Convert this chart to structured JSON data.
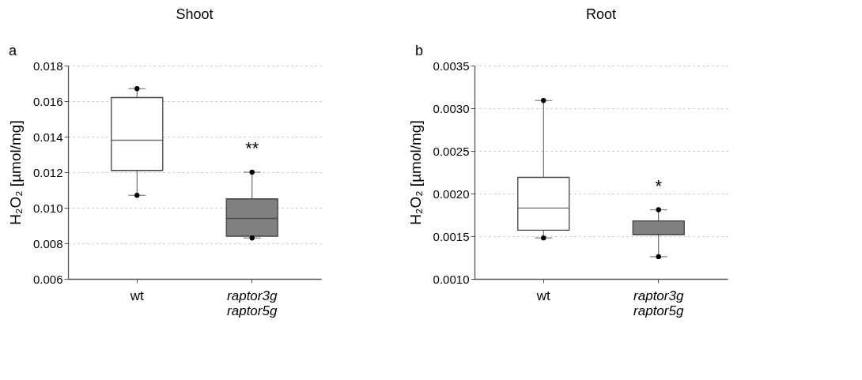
{
  "chart_data": [
    {
      "type": "box",
      "title": "Shoot",
      "ylabel": "H₂O₂ [µmol/mg]",
      "categories": [
        "wt",
        "raptor3g raptor5g"
      ],
      "colors": [
        "#ffffff",
        "#808080"
      ],
      "boxes": [
        {
          "low": 0.0107,
          "q1": 0.0121,
          "median": 0.0138,
          "q3": 0.0162,
          "high": 0.0167,
          "outliers": [
            0.0107,
            0.0167
          ]
        },
        {
          "low": 0.0083,
          "q1": 0.0084,
          "median": 0.0094,
          "q3": 0.0105,
          "high": 0.012,
          "outliers": [
            0.0083,
            0.012
          ]
        }
      ],
      "ylim": [
        0.006,
        0.018
      ],
      "yticks": [
        {
          "value": 0.006,
          "label": "0.006"
        },
        {
          "value": 0.008,
          "label": "0.008"
        },
        {
          "value": 0.01,
          "label": "0.010"
        },
        {
          "value": 0.012,
          "label": "0.012"
        },
        {
          "value": 0.014,
          "label": "0.014"
        },
        {
          "value": 0.016,
          "label": "0.016"
        },
        {
          "value": 0.018,
          "label": "0.018"
        }
      ],
      "grid": "y",
      "annotations": [
        "a",
        "**"
      ]
    },
    {
      "type": "box",
      "title": "Root",
      "ylabel": "H₂O₂ [µmol/mg]",
      "categories": [
        "wt",
        "raptor3g raptor5g"
      ],
      "colors": [
        "#ffffff",
        "#808080"
      ],
      "boxes": [
        {
          "low": 0.00148,
          "q1": 0.00157,
          "median": 0.00183,
          "q3": 0.00219,
          "high": 0.00309,
          "outliers": [
            0.00148,
            0.00309
          ]
        },
        {
          "low": 0.00126,
          "q1": 0.00152,
          "median": 0.00152,
          "q3": 0.00168,
          "high": 0.00181,
          "outliers": [
            0.00126,
            0.00181
          ]
        }
      ],
      "ylim": [
        0.001,
        0.0035
      ],
      "yticks": [
        {
          "value": 0.001,
          "label": "0.0010"
        },
        {
          "value": 0.0015,
          "label": "0.0015"
        },
        {
          "value": 0.002,
          "label": "0.0020"
        },
        {
          "value": 0.0025,
          "label": "0.0025"
        },
        {
          "value": 0.003,
          "label": "0.0030"
        },
        {
          "value": 0.0035,
          "label": "0.0035"
        }
      ],
      "grid": "y",
      "annotations": [
        "b",
        "*"
      ]
    }
  ]
}
